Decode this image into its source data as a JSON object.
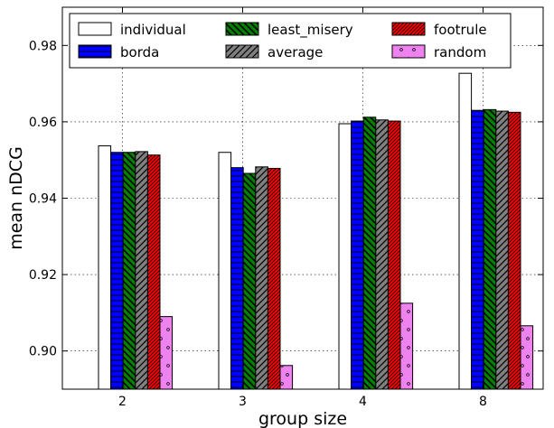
{
  "chart_data": {
    "type": "bar",
    "xlabel": "group size",
    "ylabel": "mean nDCG",
    "categories": [
      "2",
      "3",
      "4",
      "8"
    ],
    "ylim": [
      0.89,
      0.99
    ],
    "yticks": [
      "0.90",
      "0.92",
      "0.94",
      "0.96",
      "0.98"
    ],
    "grid": true,
    "legend_position": "top",
    "series": [
      {
        "name": "individual",
        "color": "#ffffff",
        "pattern": "none",
        "values": [
          0.9537,
          0.952,
          0.9595,
          0.9727
        ]
      },
      {
        "name": "borda",
        "color": "#0000ff",
        "pattern": "horizontal",
        "values": [
          0.952,
          0.948,
          0.9602,
          0.963
        ]
      },
      {
        "name": "least_misery",
        "color": "#008000",
        "pattern": "backslash",
        "values": [
          0.952,
          0.9465,
          0.9612,
          0.9632
        ]
      },
      {
        "name": "average",
        "color": "#808080",
        "pattern": "slash",
        "values": [
          0.9522,
          0.9482,
          0.9605,
          0.9628
        ]
      },
      {
        "name": "footrule",
        "color": "#ff0000",
        "pattern": "dense-slash",
        "values": [
          0.9513,
          0.9478,
          0.9602,
          0.9625
        ]
      },
      {
        "name": "random",
        "color": "#ee82ee",
        "pattern": "dots",
        "values": [
          0.909,
          0.8962,
          0.9125,
          0.9066
        ]
      }
    ]
  }
}
